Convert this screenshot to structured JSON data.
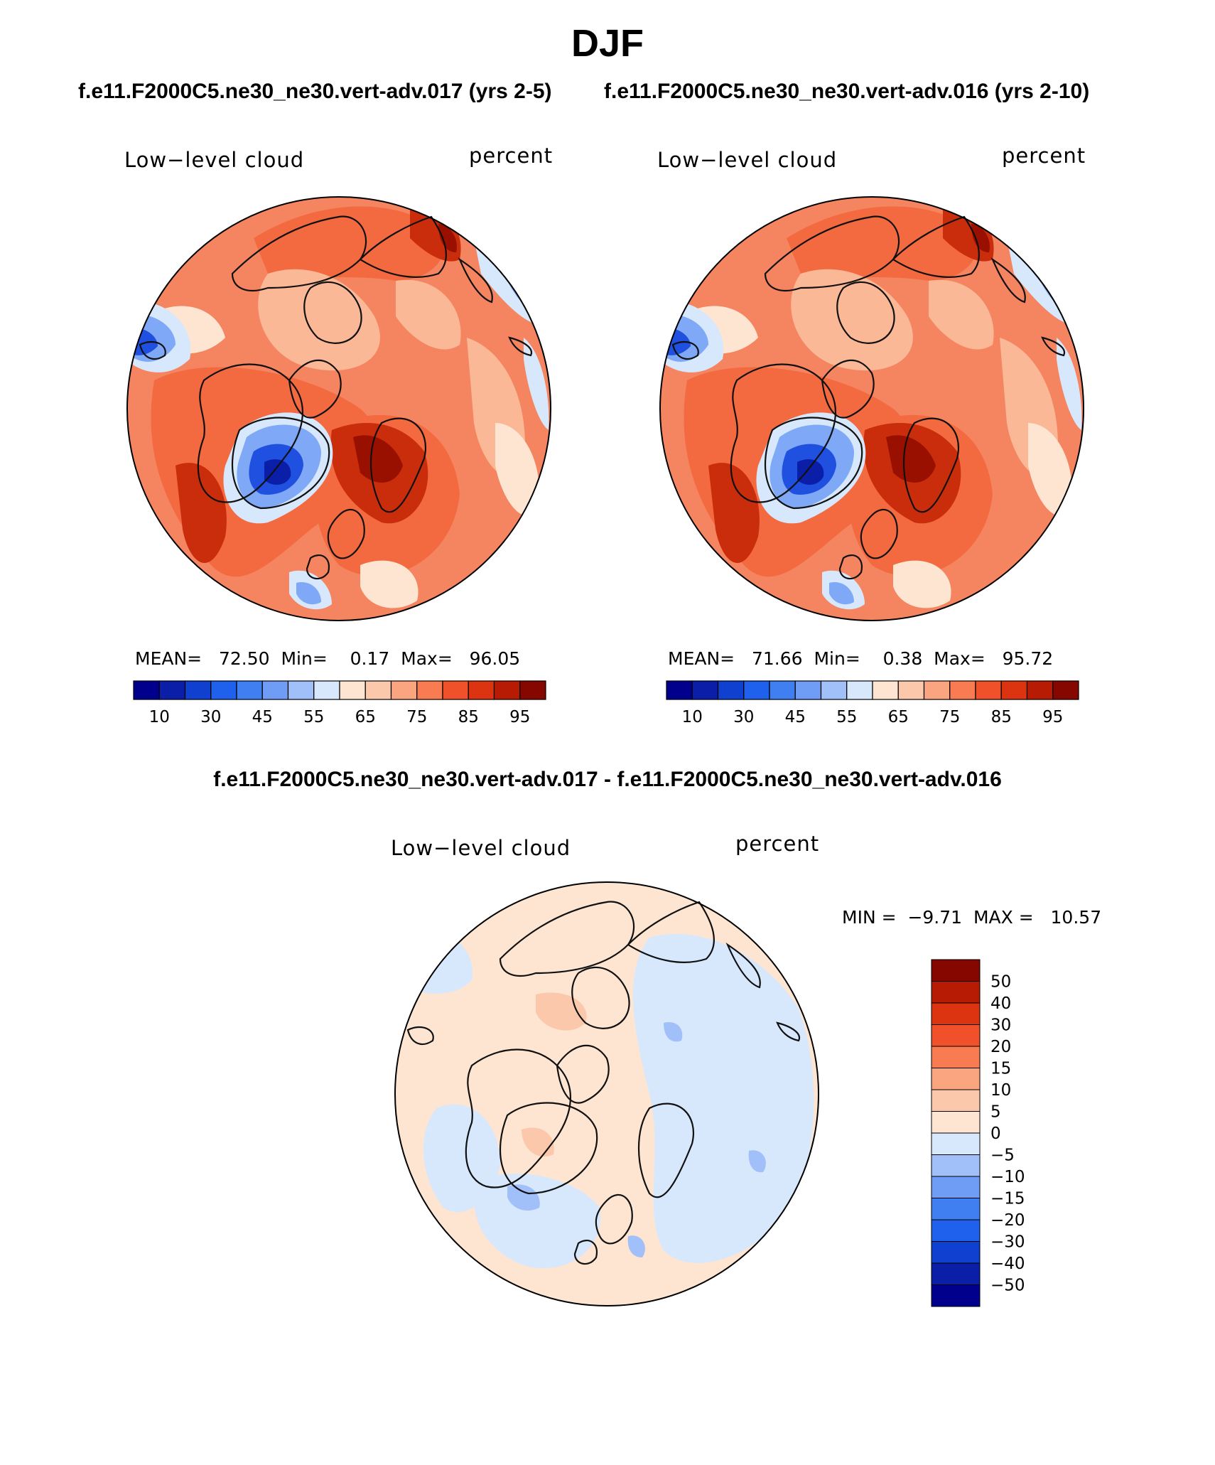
{
  "page": {
    "title": "DJF",
    "left_subtitle": "f.e11.F2000C5.ne30_ne30.vert-adv.017 (yrs 2-5)",
    "right_subtitle": "f.e11.F2000C5.ne30_ne30.vert-adv.016 (yrs 2-10)",
    "diff_subtitle": "f.e11.F2000C5.ne30_ne30.vert-adv.017 - f.e11.F2000C5.ne30_ne30.vert-adv.016"
  },
  "panels": {
    "left": {
      "variable": "Low−level cloud",
      "units": "percent",
      "mean": {
        "label": "MEAN=",
        "value": "72.50"
      },
      "min": {
        "label": "Min=",
        "value": "0.17"
      },
      "max": {
        "label": "Max=",
        "value": "96.05"
      }
    },
    "right": {
      "variable": "Low−level cloud",
      "units": "percent",
      "mean": {
        "label": "MEAN=",
        "value": "71.66"
      },
      "min": {
        "label": "Min=",
        "value": "0.38"
      },
      "max": {
        "label": "Max=",
        "value": "95.72"
      }
    },
    "diff": {
      "variable": "Low−level cloud",
      "units": "percent",
      "min_label": "MIN =",
      "min_value": "−9.71",
      "max_label": "MAX =",
      "max_value": "10.57"
    }
  },
  "colorbars": {
    "abs_colors": [
      "#00008c",
      "#0a1ea8",
      "#1040d0",
      "#1f60ec",
      "#3f7ff2",
      "#6f9df6",
      "#a1c0f9",
      "#d7e8fc",
      "#fde5d2",
      "#fcc8ab",
      "#fba580",
      "#f97b52",
      "#f0512a",
      "#dc3410",
      "#b81b04",
      "#850700"
    ],
    "abs_ticks": [
      "10",
      "30",
      "45",
      "55",
      "65",
      "75",
      "85",
      "95"
    ],
    "diff_colors": [
      "#850700",
      "#b81b04",
      "#dc3410",
      "#f0512a",
      "#f97b52",
      "#fba580",
      "#fcc8ab",
      "#fde5d2",
      "#d7e8fc",
      "#a1c0f9",
      "#6f9df6",
      "#3f7ff2",
      "#1f60ec",
      "#1040d0",
      "#0a1ea8",
      "#00008c"
    ],
    "diff_ticks": [
      "50",
      "40",
      "30",
      "20",
      "15",
      "10",
      "5",
      "0",
      "−5",
      "−10",
      "−15",
      "−20",
      "−30",
      "−40",
      "−50"
    ]
  },
  "map_colors": {
    "abs_base": "#f58560",
    "abs_dark": "#c92d0c",
    "abs_darkest": "#9a1000",
    "abs_mid": "#f36a40",
    "abs_light": "#fbb896",
    "abs_pale": "#fde5d2",
    "abs_blue_pale": "#d7e8fc",
    "abs_blue": "#7fa8f6",
    "abs_blue_dark": "#1f50e0",
    "abs_blue_deep": "#0a1ea8",
    "diff_base": "#fde5d2",
    "diff_blue": "#d7e8fc",
    "diff_blue2": "#a1c0f9",
    "diff_red": "#fcc8ab",
    "coast": "#111111"
  }
}
